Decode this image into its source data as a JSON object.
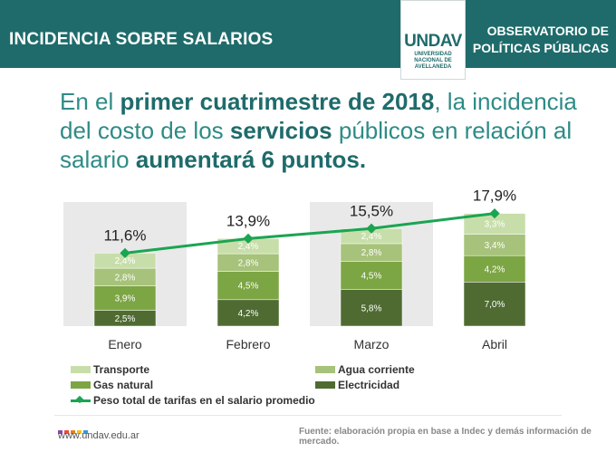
{
  "header": {
    "title": "INCIDENCIA SOBRE SALARIOS",
    "logo_text": "UNDAV",
    "logo_subtitle": [
      "UNIVERSIDAD",
      "NACIONAL DE",
      "AVELLANEDA"
    ],
    "observatory_line1": "OBSERVATORIO DE",
    "observatory_line2": "POLÍTICAS PÚBLICAS"
  },
  "headline": {
    "p1": "En el ",
    "b1": "primer cuatrimestre de 2018",
    "p2": ", la incidencia del costo de los ",
    "b2": "servicios",
    "p3": " públicos en relación al salario ",
    "b3": "aumentará 6 puntos."
  },
  "colors": {
    "header_bg": "#1f6b6b",
    "line": "#1aa552",
    "electricidad": "#4f6b32",
    "gas": "#7ca544",
    "agua": "#a7c27a",
    "transporte": "#c8deaa"
  },
  "chart_data": {
    "type": "stacked-bar-with-line",
    "categories": [
      "Enero",
      "Febrero",
      "Marzo",
      "Abril"
    ],
    "series": [
      {
        "name": "Electricidad",
        "key": "electricidad",
        "values": [
          2.5,
          4.2,
          5.8,
          7.0
        ],
        "labels": [
          "2,5%",
          "4,2%",
          "5,8%",
          "7,0%"
        ]
      },
      {
        "name": "Gas natural",
        "key": "gas",
        "values": [
          3.9,
          4.5,
          4.5,
          4.2
        ],
        "labels": [
          "3,9%",
          "4,5%",
          "4,5%",
          "4,2%"
        ]
      },
      {
        "name": "Agua corriente",
        "key": "agua",
        "values": [
          2.8,
          2.8,
          2.8,
          3.4
        ],
        "labels": [
          "2,8%",
          "2,8%",
          "2,8%",
          "3,4%"
        ]
      },
      {
        "name": "Transporte",
        "key": "transporte",
        "values": [
          2.4,
          2.4,
          2.4,
          3.3
        ],
        "labels": [
          "2,4%",
          "2,4%",
          "2,4%",
          "3,3%"
        ]
      }
    ],
    "line": {
      "name": "Peso total de tarifas en el salario promedio",
      "values": [
        11.6,
        13.9,
        15.5,
        17.9
      ],
      "labels": [
        "11,6%",
        "13,9%",
        "15,5%",
        "17,9%"
      ]
    },
    "ylim": [
      0,
      20
    ]
  },
  "legend": {
    "transporte": "Transporte",
    "agua": "Agua corriente",
    "gas": "Gas natural",
    "electricidad": "Electricidad",
    "line": "Peso total de tarifas en el salario promedio"
  },
  "footer": {
    "url": "www.undav.edu.ar",
    "source": "Fuente: elaboración propia en base a Indec y demás información de mercado.",
    "dot_colors": [
      "#8e44ad",
      "#e74c3c",
      "#e67e22",
      "#f1c40f",
      "#3498db"
    ]
  }
}
